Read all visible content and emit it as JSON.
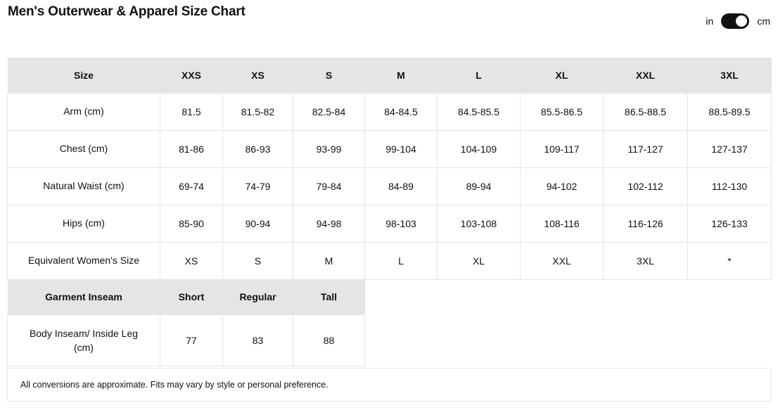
{
  "page": {
    "title": "Men's Outerwear & Apparel Size Chart"
  },
  "unit_toggle": {
    "left_label": "in",
    "right_label": "cm",
    "selected": "cm",
    "state": "on"
  },
  "size_table": {
    "columns": [
      "Size",
      "XXS",
      "XS",
      "S",
      "M",
      "L",
      "XL",
      "XXL",
      "3XL"
    ],
    "rows": [
      {
        "label": "Arm (cm)",
        "values": [
          "81.5",
          "81.5-82",
          "82.5-84",
          "84-84.5",
          "84.5-85.5",
          "85.5-86.5",
          "86.5-88.5",
          "88.5-89.5"
        ]
      },
      {
        "label": "Chest (cm)",
        "values": [
          "81-86",
          "86-93",
          "93-99",
          "99-104",
          "104-109",
          "109-117",
          "117-127",
          "127-137"
        ]
      },
      {
        "label": "Natural Waist (cm)",
        "values": [
          "69-74",
          "74-79",
          "79-84",
          "84-89",
          "89-94",
          "94-102",
          "102-112",
          "112-130"
        ]
      },
      {
        "label": "Hips (cm)",
        "values": [
          "85-90",
          "90-94",
          "94-98",
          "98-103",
          "103-108",
          "108-116",
          "116-126",
          "126-133"
        ]
      },
      {
        "label": "Equivalent Women's Size",
        "values": [
          "XS",
          "S",
          "M",
          "L",
          "XL",
          "XXL",
          "3XL",
          "*"
        ]
      }
    ]
  },
  "inseam_table": {
    "columns": [
      "Garment Inseam",
      "Short",
      "Regular",
      "Tall"
    ],
    "rows": [
      {
        "label": "Body Inseam/ Inside Leg (cm)",
        "values": [
          "77",
          "83",
          "88"
        ]
      }
    ]
  },
  "footnote": "All conversions are approximate. Fits may vary by style or personal preference.",
  "colors": {
    "header_bg": "#e5e5e5",
    "border": "#e5e5e5",
    "text": "#111111",
    "toggle_bg": "#111111",
    "toggle_knob": "#ffffff",
    "background": "#ffffff"
  }
}
